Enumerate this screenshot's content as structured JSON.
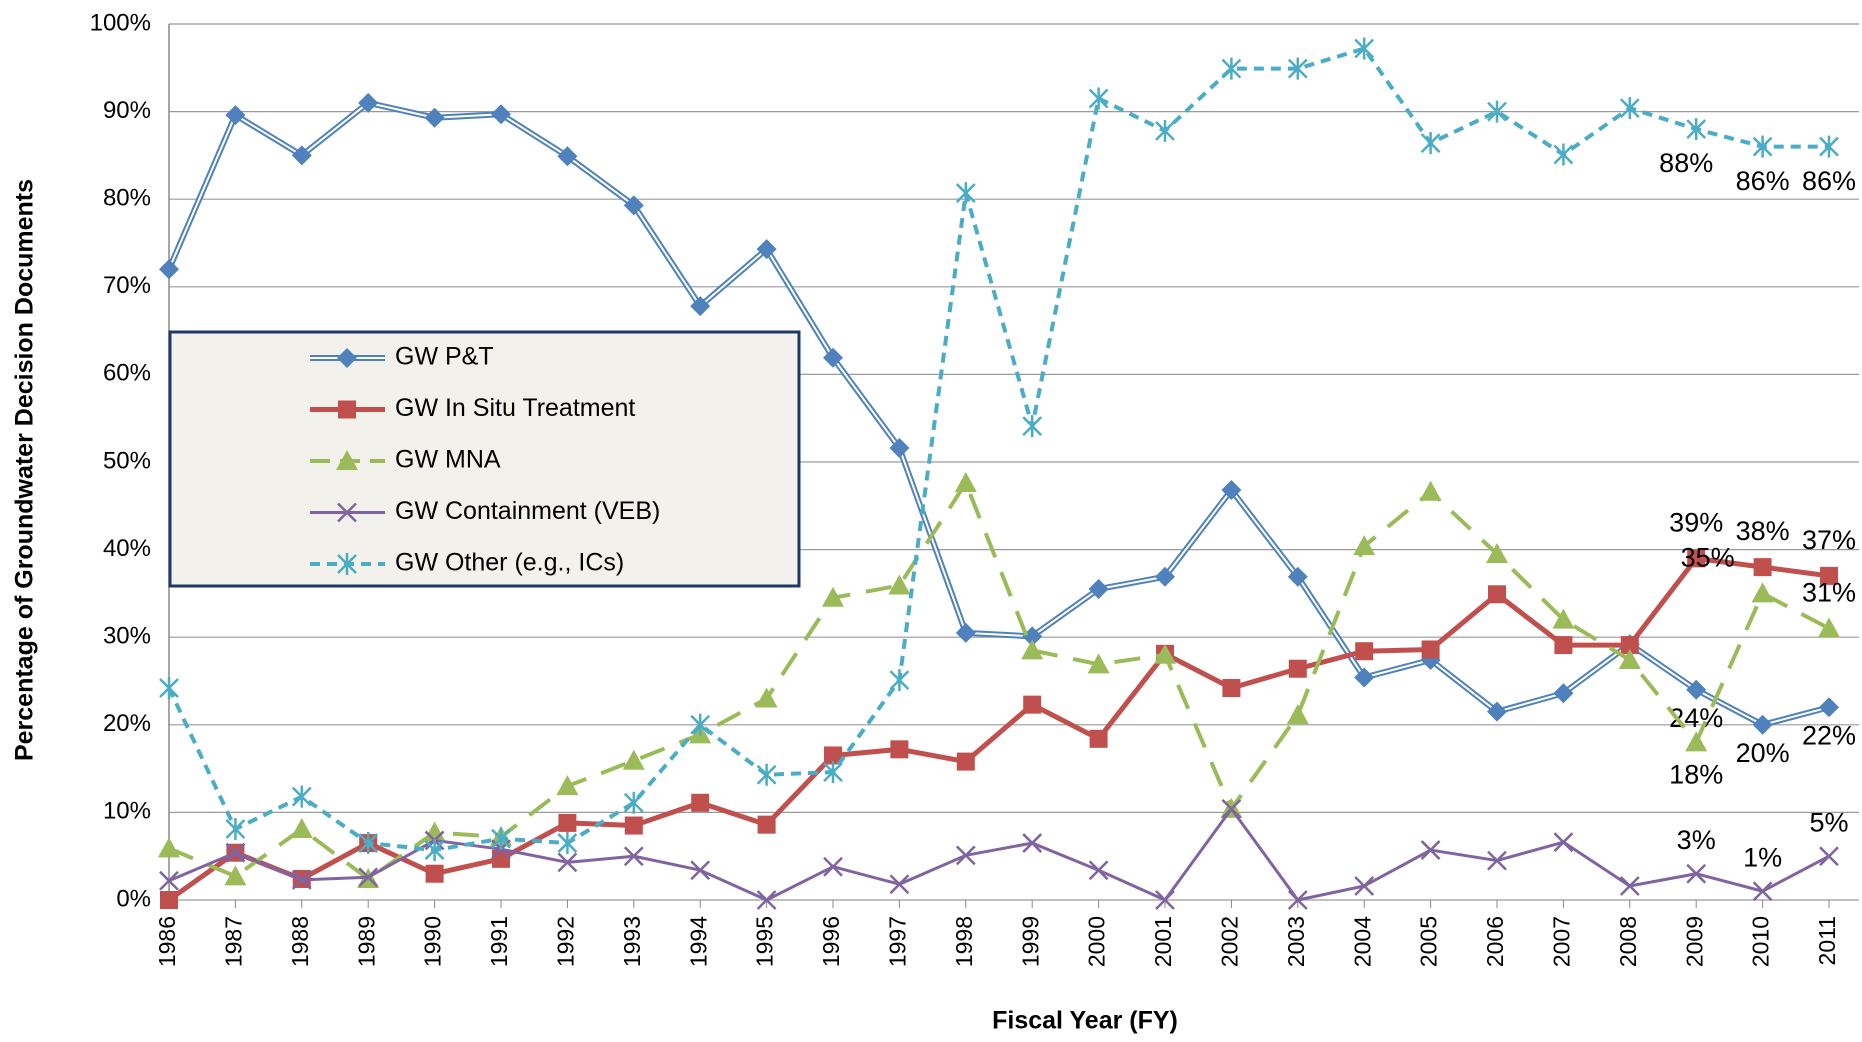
{
  "chart_data": {
    "type": "line",
    "y_label": "Percentage of Groundwater Decision Documents",
    "x_label": "Fiscal Year (FY)",
    "categories": [
      "1986",
      "1987",
      "1988",
      "1989",
      "1990",
      "1991",
      "1992",
      "1993",
      "1994",
      "1995",
      "1996",
      "1997",
      "1998",
      "1999",
      "2000",
      "2001",
      "2002",
      "2003",
      "2004",
      "2005",
      "2006",
      "2007",
      "2008",
      "2009",
      "2010",
      "2011"
    ],
    "ylim": [
      0,
      100
    ],
    "yticks": [
      {
        "value": 0,
        "label": "0%"
      },
      {
        "value": 10,
        "label": "10%"
      },
      {
        "value": 20,
        "label": "20%"
      },
      {
        "value": 30,
        "label": "30%"
      },
      {
        "value": 40,
        "label": "40%"
      },
      {
        "value": 50,
        "label": "50%"
      },
      {
        "value": 60,
        "label": "60%"
      },
      {
        "value": 70,
        "label": "70%"
      },
      {
        "value": 80,
        "label": "80%"
      },
      {
        "value": 90,
        "label": "90%"
      },
      {
        "value": 100,
        "label": "100%"
      }
    ],
    "grid": true,
    "series": [
      {
        "name": "GW P&T",
        "color": "#4f81bd",
        "marker": "diamond",
        "values": [
          72,
          89.6,
          85,
          91,
          89.3,
          89.7,
          84.9,
          79.3,
          67.8,
          74.3,
          61.9,
          51.6,
          30.5,
          30.1,
          35.5,
          36.9,
          46.8,
          36.9,
          25.4,
          27.4,
          21.5,
          23.6,
          29.2,
          24,
          20,
          22
        ],
        "value_labels": [
          null,
          null,
          null,
          null,
          null,
          null,
          null,
          null,
          null,
          null,
          null,
          null,
          null,
          null,
          null,
          null,
          null,
          null,
          null,
          null,
          null,
          null,
          null,
          "24%",
          "20%",
          "22%"
        ]
      },
      {
        "name": "GW In Situ Treatment",
        "color": "#c0504d",
        "marker": "square",
        "values": [
          0,
          5.4,
          2.4,
          6.5,
          3,
          4.7,
          8.8,
          8.5,
          11.1,
          8.6,
          16.5,
          17.2,
          15.8,
          22.3,
          18.4,
          28.1,
          24.2,
          26.4,
          28.4,
          28.6,
          34.9,
          29.1,
          29.1,
          39,
          38,
          37
        ],
        "value_labels": [
          null,
          null,
          null,
          null,
          null,
          null,
          null,
          null,
          null,
          null,
          null,
          null,
          null,
          null,
          null,
          null,
          null,
          null,
          null,
          null,
          null,
          null,
          null,
          "39%",
          "38%",
          "37%"
        ]
      },
      {
        "name": "GW MNA",
        "color": "#9bbb59",
        "marker": "triangle",
        "values": [
          5.9,
          2.7,
          8.1,
          2.4,
          7.7,
          7.2,
          13,
          15.9,
          18.9,
          23,
          34.5,
          35.9,
          47.6,
          28.5,
          26.9,
          28,
          10.4,
          21.1,
          40.4,
          46.6,
          39.5,
          32,
          27.4,
          18,
          35,
          31
        ],
        "value_labels": [
          null,
          null,
          null,
          null,
          null,
          null,
          null,
          null,
          null,
          null,
          null,
          null,
          null,
          null,
          null,
          null,
          null,
          null,
          null,
          null,
          null,
          null,
          null,
          "18%",
          "35%",
          "31%"
        ]
      },
      {
        "name": "GW Containment (VEB)",
        "color": "#8064a2",
        "marker": "x",
        "values": [
          2.2,
          5.4,
          2.3,
          2.6,
          6.8,
          5.8,
          4.3,
          5,
          3.4,
          0,
          3.8,
          1.8,
          5.1,
          6.5,
          3.4,
          0,
          10.4,
          0,
          1.6,
          5.7,
          4.5,
          6.6,
          1.6,
          3,
          1,
          5
        ],
        "value_labels": [
          null,
          null,
          null,
          null,
          null,
          null,
          null,
          null,
          null,
          null,
          null,
          null,
          null,
          null,
          null,
          null,
          null,
          null,
          null,
          null,
          null,
          null,
          null,
          "3%",
          "1%",
          "5%"
        ]
      },
      {
        "name": "GW Other (e.g., ICs)",
        "color": "#4bacc6",
        "marker": "star",
        "values": [
          24.2,
          8.1,
          11.8,
          6.5,
          5.7,
          7,
          6.5,
          11.1,
          20,
          14.3,
          14.6,
          25.1,
          80.7,
          54.1,
          91.5,
          87.8,
          94.9,
          94.9,
          97.2,
          86.4,
          90,
          85.1,
          90.4,
          88,
          86,
          86
        ],
        "value_labels": [
          null,
          null,
          null,
          null,
          null,
          null,
          null,
          null,
          null,
          null,
          null,
          null,
          null,
          null,
          null,
          null,
          null,
          null,
          null,
          null,
          null,
          null,
          null,
          "88%",
          "86%",
          "86%"
        ]
      }
    ]
  }
}
